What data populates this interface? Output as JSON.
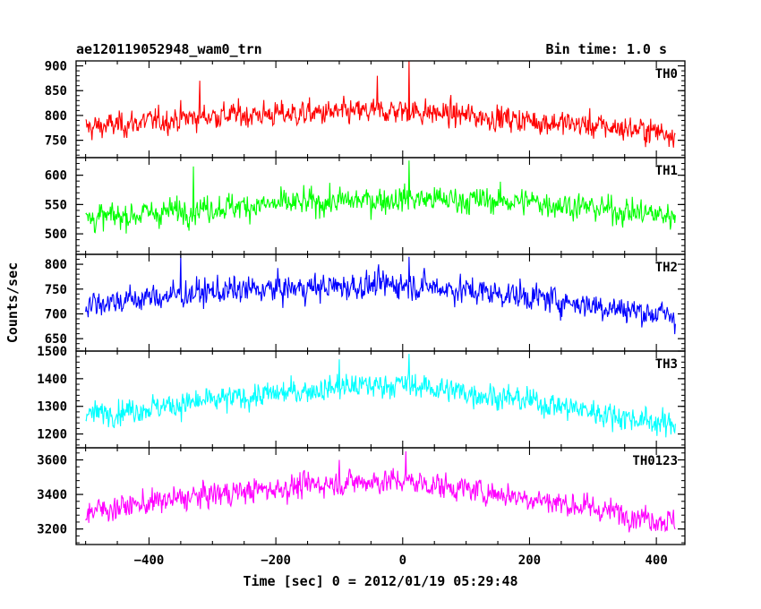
{
  "header": {
    "title": "ae120119052948_wam0_trn",
    "bin_time": "Bin time: 1.0 s"
  },
  "chart_data": {
    "type": "line",
    "title": "ae120119052948_wam0_trn",
    "subtitle": "Bin time: 1.0 s",
    "xlabel": "Time [sec] 0 = 2012/01/19 05:29:48",
    "ylabel": "Counts/sec",
    "xlim": [
      -515,
      445
    ],
    "x_ticks": [
      -400,
      -200,
      0,
      200,
      400
    ],
    "x_start": -500,
    "x_end": 430,
    "grid": false,
    "panels": [
      {
        "name": "TH0",
        "color": "#ff0000",
        "ylim": [
          715,
          910
        ],
        "y_ticks": [
          750,
          800,
          850,
          900
        ],
        "trend_points": [
          [
            -500,
            775
          ],
          [
            -300,
            800
          ],
          [
            -100,
            805
          ],
          [
            0,
            810
          ],
          [
            200,
            790
          ],
          [
            430,
            765
          ]
        ],
        "noise_amplitude": 28,
        "spikes": [
          [
            10,
            915
          ],
          [
            -320,
            870
          ],
          [
            -40,
            880
          ]
        ]
      },
      {
        "name": "TH1",
        "color": "#00ff00",
        "ylim": [
          465,
          630
        ],
        "y_ticks": [
          500,
          550,
          600
        ],
        "trend_points": [
          [
            -500,
            525
          ],
          [
            -300,
            545
          ],
          [
            -100,
            555
          ],
          [
            0,
            560
          ],
          [
            200,
            555
          ],
          [
            430,
            530
          ]
        ],
        "noise_amplitude": 25,
        "spikes": [
          [
            10,
            625
          ],
          [
            -330,
            615
          ]
        ]
      },
      {
        "name": "TH2",
        "color": "#0000ff",
        "ylim": [
          625,
          820
        ],
        "y_ticks": [
          650,
          700,
          750,
          800
        ],
        "trend_points": [
          [
            -500,
            720
          ],
          [
            -300,
            745
          ],
          [
            -100,
            755
          ],
          [
            0,
            760
          ],
          [
            200,
            735
          ],
          [
            430,
            695
          ]
        ],
        "noise_amplitude": 30,
        "spikes": [
          [
            -350,
            820
          ],
          [
            10,
            815
          ]
        ]
      },
      {
        "name": "TH3",
        "color": "#00ffff",
        "ylim": [
          1150,
          1500
        ],
        "y_ticks": [
          1200,
          1300,
          1400,
          1500
        ],
        "trend_points": [
          [
            -500,
            1270
          ],
          [
            -300,
            1320
          ],
          [
            -100,
            1370
          ],
          [
            0,
            1380
          ],
          [
            200,
            1320
          ],
          [
            430,
            1230
          ]
        ],
        "noise_amplitude": 50,
        "spikes": [
          [
            10,
            1490
          ],
          [
            -100,
            1470
          ]
        ]
      },
      {
        "name": "TH0123",
        "color": "#ff00ff",
        "ylim": [
          3110,
          3670
        ],
        "y_ticks": [
          3200,
          3400,
          3600
        ],
        "trend_points": [
          [
            -500,
            3300
          ],
          [
            -300,
            3400
          ],
          [
            -100,
            3470
          ],
          [
            0,
            3480
          ],
          [
            200,
            3380
          ],
          [
            430,
            3240
          ]
        ],
        "noise_amplitude": 80,
        "spikes": [
          [
            5,
            3650
          ],
          [
            -100,
            3600
          ]
        ]
      }
    ]
  }
}
